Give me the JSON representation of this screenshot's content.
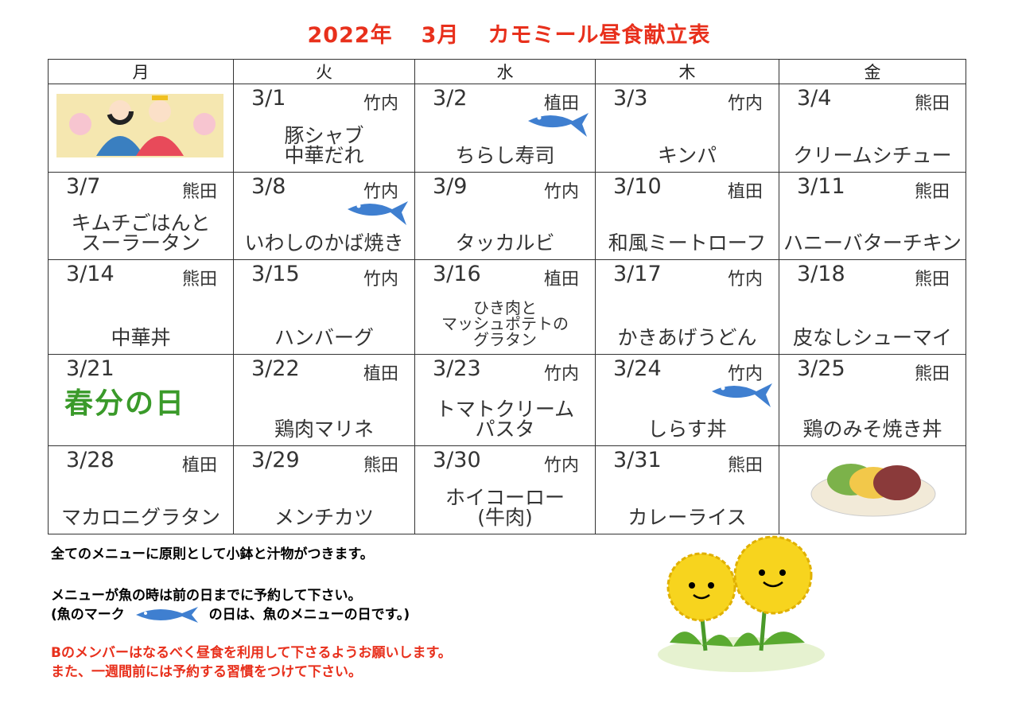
{
  "title": {
    "year": "2022年",
    "month": "3月",
    "name": "カモミール昼食献立表"
  },
  "weekdays": [
    "月",
    "火",
    "水",
    "木",
    "金"
  ],
  "weeks": [
    [
      null,
      {
        "date": "3/1",
        "staff": "竹内",
        "menu": "豚シャブ\n中華だれ"
      },
      {
        "date": "3/2",
        "staff": "植田",
        "menu": "ちらし寿司",
        "fish": true
      },
      {
        "date": "3/3",
        "staff": "竹内",
        "menu": "キンパ"
      },
      {
        "date": "3/4",
        "staff": "熊田",
        "menu": "クリームシチュー"
      }
    ],
    [
      {
        "date": "3/7",
        "staff": "熊田",
        "menu": "キムチごはんと\nスーラータン"
      },
      {
        "date": "3/8",
        "staff": "竹内",
        "menu": "いわしのかば焼き",
        "fish": true
      },
      {
        "date": "3/9",
        "staff": "竹内",
        "menu": "タッカルビ"
      },
      {
        "date": "3/10",
        "staff": "植田",
        "menu": "和風ミートローフ"
      },
      {
        "date": "3/11",
        "staff": "熊田",
        "menu": "ハニーバターチキン"
      }
    ],
    [
      {
        "date": "3/14",
        "staff": "熊田",
        "menu": "中華丼"
      },
      {
        "date": "3/15",
        "staff": "竹内",
        "menu": "ハンバーグ"
      },
      {
        "date": "3/16",
        "staff": "植田",
        "menu": "ひき肉と\nマッシュポテトの\nグラタン",
        "small": true
      },
      {
        "date": "3/17",
        "staff": "竹内",
        "menu": "かきあげうどん"
      },
      {
        "date": "3/18",
        "staff": "熊田",
        "menu": "皮なしシューマイ"
      }
    ],
    [
      {
        "date": "3/21",
        "holiday": "春分の日"
      },
      {
        "date": "3/22",
        "staff": "植田",
        "menu": "鶏肉マリネ"
      },
      {
        "date": "3/23",
        "staff": "竹内",
        "menu": "トマトクリーム\nパスタ"
      },
      {
        "date": "3/24",
        "staff": "竹内",
        "menu": "しらす丼",
        "fish": true
      },
      {
        "date": "3/25",
        "staff": "熊田",
        "menu": "鶏のみそ焼き丼"
      }
    ],
    [
      {
        "date": "3/28",
        "staff": "植田",
        "menu": "マカロニグラタン"
      },
      {
        "date": "3/29",
        "staff": "熊田",
        "menu": "メンチカツ"
      },
      {
        "date": "3/30",
        "staff": "竹内",
        "menu": "ホイコーロー\n(牛肉)"
      },
      {
        "date": "3/31",
        "staff": "熊田",
        "menu": "カレーライス"
      },
      null
    ]
  ],
  "notes": {
    "line1": "全てのメニューに原則として小鉢と汁物がつきます。",
    "line2": "メニューが魚の時は前の日までに予約して下さい。",
    "line3a": "(魚のマーク",
    "line3b": "の日は、魚のメニューの日です。)",
    "line4": "Bのメンバーはなるべく昼食を利用して下さるようお願いします。",
    "line5": "また、一週間前には予約する習慣をつけて下さい。"
  },
  "colors": {
    "accent": "#e8301c",
    "fish": "#3f7fd0"
  }
}
